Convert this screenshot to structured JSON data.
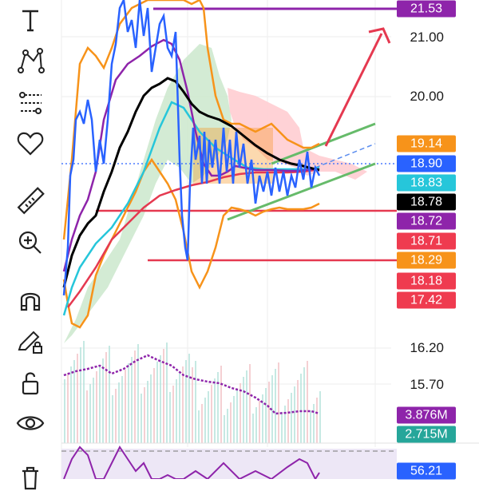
{
  "toolbar": {
    "tools": [
      {
        "name": "text-tool",
        "icon": "text-icon"
      },
      {
        "name": "pattern-tool",
        "icon": "pattern-icon"
      },
      {
        "name": "fib-tool",
        "icon": "fib-retracement-icon"
      },
      {
        "name": "favorites-tool",
        "icon": "heart-icon"
      },
      {
        "name": "measure-tool",
        "icon": "ruler-icon"
      },
      {
        "name": "zoom-tool",
        "icon": "zoom-in-icon"
      },
      {
        "name": "magnet-tool",
        "icon": "magnet-icon"
      },
      {
        "name": "lock-drawing-tool",
        "icon": "pencil-lock-icon"
      },
      {
        "name": "lock-all-tool",
        "icon": "unlock-icon"
      },
      {
        "name": "visibility-tool",
        "icon": "eye-icon"
      },
      {
        "name": "delete-tool",
        "icon": "trash-icon"
      }
    ]
  },
  "price_axis": {
    "labels": [
      "21.00",
      "20.00",
      "16.20",
      "15.70"
    ]
  },
  "badges": [
    {
      "value": "21.53",
      "color": "#8e24aa"
    },
    {
      "value": "19.14",
      "color": "#f7931a"
    },
    {
      "value": "18.90",
      "color": "#2962ff"
    },
    {
      "value": "18.83",
      "color": "#26c6da"
    },
    {
      "value": "18.78",
      "color": "#000000"
    },
    {
      "value": "18.72",
      "color": "#8e24aa"
    },
    {
      "value": "18.71",
      "color": "#ef3b4f"
    },
    {
      "value": "18.29",
      "color": "#f7931a"
    },
    {
      "value": "18.18",
      "color": "#ef3b4f"
    },
    {
      "value": "17.42",
      "color": "#ef3b4f"
    },
    {
      "value": "3.876M",
      "color": "#8e24aa"
    },
    {
      "value": "2.715M",
      "color": "#26a69a"
    },
    {
      "value": "56.21",
      "color": "#2962ff"
    }
  ],
  "colors": {
    "price_line": "#2962ff",
    "ma_black": "#000000",
    "ma_purple": "#8e24aa",
    "ma_cyan": "#26c6da",
    "ma_red": "#ef3b4f",
    "bollinger": "#f7931a",
    "channel": "#66bb6a",
    "cloud_green": "#c8e6c9",
    "cloud_red": "#ffcdd2"
  }
}
